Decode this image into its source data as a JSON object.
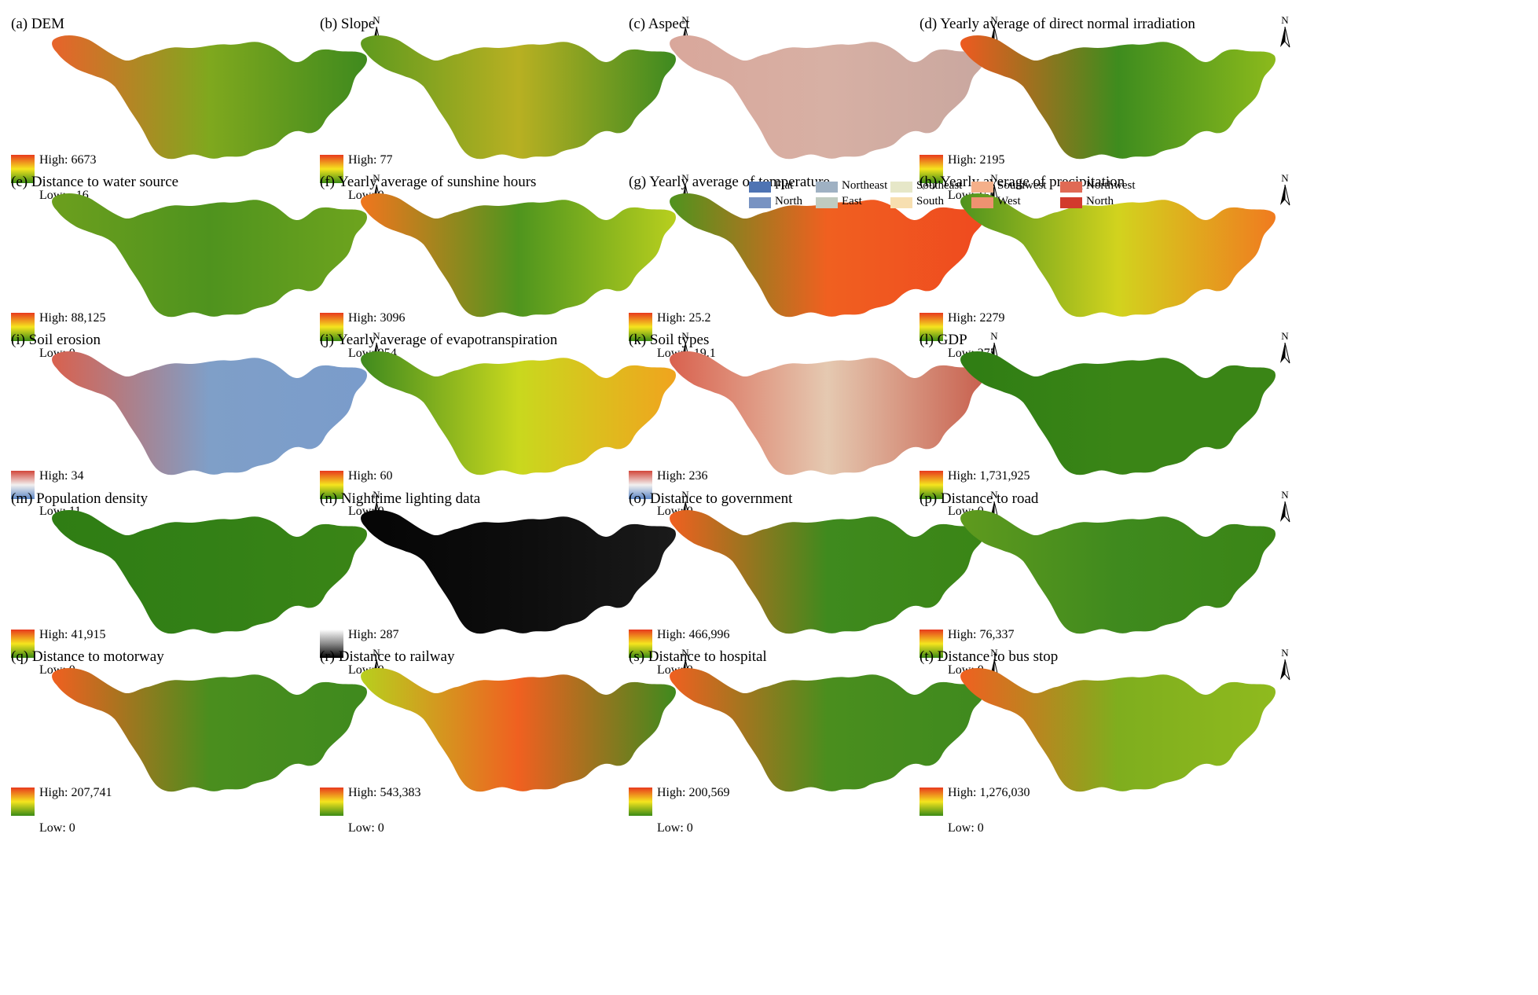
{
  "north_label": "N",
  "panels": [
    {
      "title": "(a) DEM",
      "high": "High: 6673",
      "low": "Low: −16",
      "palette": "ryg",
      "map": [
        "#e8632b",
        "#7fa81e",
        "#3f8a1e"
      ]
    },
    {
      "title": "(b) Slope",
      "high": "High: 77",
      "low": "Low: 0",
      "palette": "ryg",
      "map": [
        "#5f9a1e",
        "#b8b022",
        "#3d8a20"
      ]
    },
    {
      "title": "(c) Aspect",
      "high": "",
      "low": "",
      "palette": "none",
      "map": [
        "#d9a79b",
        "#d7b0a4",
        "#c9a79f"
      ]
    },
    {
      "title": "(d) Yearly average of direct normal irradiation",
      "high": "High: 2195",
      "low": "Low: 150",
      "palette": "ryg",
      "map": [
        "#ee5a20",
        "#3e8c1e",
        "#8cba1c"
      ]
    },
    {
      "title": "(e) Distance to water source",
      "high": "High: 88,125",
      "low": "Low: 0",
      "palette": "ryg",
      "map": [
        "#6c9f1e",
        "#4f931e",
        "#6ea41e"
      ]
    },
    {
      "title": "(f) Yearly average of sunshine hours",
      "high": "High: 3096",
      "low": "Low: 954",
      "palette": "ryg",
      "map": [
        "#f0761e",
        "#4f951e",
        "#b8cf1e"
      ]
    },
    {
      "title": "(g) Yearly average of temperature",
      "high": "High: 25.2",
      "low": "Low: −19.1",
      "palette": "ryg",
      "map": [
        "#4f931e",
        "#f06020",
        "#ef4a1f"
      ]
    },
    {
      "title": "(h) Yearly average of precipitation",
      "high": "High: 2279",
      "low": "Low: 275",
      "palette": "ryg",
      "map": [
        "#4f931e",
        "#d2d31e",
        "#f07b1f"
      ]
    },
    {
      "title": "(i) Soil erosion",
      "high": "High: 34",
      "low": "Low: 11",
      "palette": "rwb",
      "map": [
        "#d9614e",
        "#7f9fc8",
        "#7a9ccb"
      ]
    },
    {
      "title": "(j) Yearly average of evapotranspiration",
      "high": "High: 60",
      "low": "Low: 0",
      "palette": "ryg",
      "map": [
        "#3f8a1e",
        "#c9d81e",
        "#f0a41e"
      ]
    },
    {
      "title": "(k) Soil types",
      "high": "High: 236",
      "low": "Low: 0",
      "palette": "rwb",
      "map": [
        "#d9614e",
        "#e5c9b1",
        "#c8604e"
      ]
    },
    {
      "title": "(l) GDP",
      "high": "High: 1,731,925",
      "low": "Low: 0",
      "palette": "ryg",
      "map": [
        "#2f7d14",
        "#3a8516",
        "#3a8516"
      ]
    },
    {
      "title": "(m) Population density",
      "high": "High: 41,915",
      "low": "Low: 0",
      "palette": "ryg",
      "map": [
        "#2f7d14",
        "#338016",
        "#3a8516"
      ]
    },
    {
      "title": "(n) Nighttime lighting data",
      "high": "High: 287",
      "low": "Low: 0",
      "palette": "bw",
      "map": [
        "#050505",
        "#0d0d0d",
        "#1a1a1a"
      ]
    },
    {
      "title": "(o) Distance to government",
      "high": "High: 466,996",
      "low": "Low: 0",
      "palette": "ryg",
      "map": [
        "#f06020",
        "#3f8a1e",
        "#3a8516"
      ]
    },
    {
      "title": "(p) Distance to road",
      "high": "High: 76,337",
      "low": "Low: 0",
      "palette": "ryg",
      "map": [
        "#5f9a1e",
        "#3f8a1e",
        "#3a8516"
      ]
    },
    {
      "title": "(q) Distance to motorway",
      "high": "High: 207,741",
      "low": "Low: 0",
      "palette": "ryg",
      "map": [
        "#f06020",
        "#4a8e1e",
        "#3f8a1e"
      ]
    },
    {
      "title": "(r) Distance to railway",
      "high": "High: 543,383",
      "low": "Low: 0",
      "palette": "ryg",
      "map": [
        "#b8cf1e",
        "#f06020",
        "#3f8a1e"
      ]
    },
    {
      "title": "(s) Distance to hospital",
      "high": "High: 200,569",
      "low": "Low: 0",
      "palette": "ryg",
      "map": [
        "#f06020",
        "#4a8e1e",
        "#3f8a1e"
      ]
    },
    {
      "title": "(t) Distance to bus stop",
      "high": "High: 1,276,030",
      "low": "Low: 0",
      "palette": "ryg",
      "map": [
        "#f06020",
        "#7fae1e",
        "#8fba1e"
      ]
    }
  ],
  "aspect_legend": [
    {
      "label": "Flat",
      "color": "#4f74b3"
    },
    {
      "label": "North",
      "color": "#7893c2"
    },
    {
      "label": "Northeast",
      "color": "#9fb1c3"
    },
    {
      "label": "East",
      "color": "#bfcbc0"
    },
    {
      "label": "Southeast",
      "color": "#e6e7c8"
    },
    {
      "label": "South",
      "color": "#f7dfb0"
    },
    {
      "label": "Southwest",
      "color": "#f5b08a"
    },
    {
      "label": "West",
      "color": "#ee9270"
    },
    {
      "label": "Northwest",
      "color": "#e06a55"
    },
    {
      "label": "North",
      "color": "#d23a2d"
    }
  ]
}
